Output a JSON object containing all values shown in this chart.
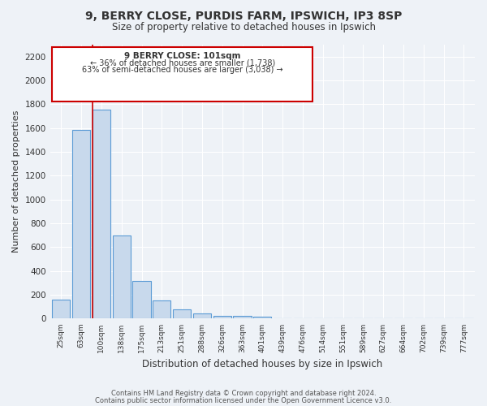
{
  "title1": "9, BERRY CLOSE, PURDIS FARM, IPSWICH, IP3 8SP",
  "title2": "Size of property relative to detached houses in Ipswich",
  "xlabel": "Distribution of detached houses by size in Ipswich",
  "ylabel": "Number of detached properties",
  "categories": [
    "25sqm",
    "63sqm",
    "100sqm",
    "138sqm",
    "175sqm",
    "213sqm",
    "251sqm",
    "288sqm",
    "326sqm",
    "363sqm",
    "401sqm",
    "439sqm",
    "476sqm",
    "514sqm",
    "551sqm",
    "589sqm",
    "627sqm",
    "664sqm",
    "702sqm",
    "739sqm",
    "777sqm"
  ],
  "values": [
    160,
    1585,
    1755,
    700,
    315,
    155,
    80,
    45,
    25,
    20,
    15,
    0,
    0,
    0,
    0,
    0,
    0,
    0,
    0,
    0,
    0
  ],
  "bar_fill_color": "#c8d9ec",
  "bar_edge_color": "#5b9bd5",
  "marker_line_color": "#cc0000",
  "annotation_text_line1": "9 BERRY CLOSE: 101sqm",
  "annotation_text_line2": "← 36% of detached houses are smaller (1,738)",
  "annotation_text_line3": "63% of semi-detached houses are larger (3,038) →",
  "ylim": [
    0,
    2300
  ],
  "yticks": [
    0,
    200,
    400,
    600,
    800,
    1000,
    1200,
    1400,
    1600,
    1800,
    2000,
    2200
  ],
  "footer1": "Contains HM Land Registry data © Crown copyright and database right 2024.",
  "footer2": "Contains public sector information licensed under the Open Government Licence v3.0.",
  "bg_color": "#eef2f7",
  "grid_color": "#ffffff",
  "font_color": "#333333"
}
